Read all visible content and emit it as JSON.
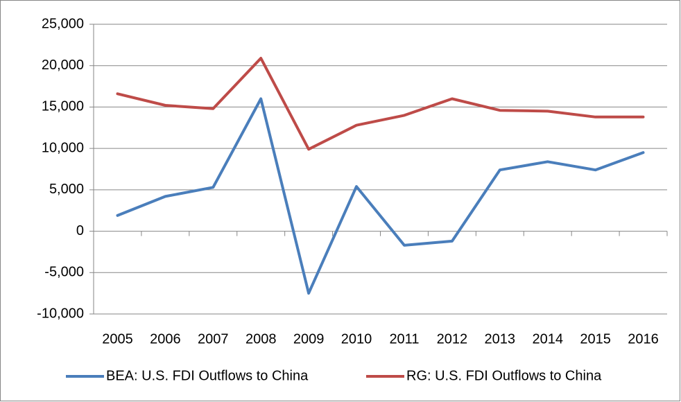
{
  "chart_data": {
    "type": "line",
    "categories": [
      "2005",
      "2006",
      "2007",
      "2008",
      "2009",
      "2010",
      "2011",
      "2012",
      "2013",
      "2014",
      "2015",
      "2016"
    ],
    "series": [
      {
        "name": "BEA: U.S. FDI Outflows to China",
        "color": "#4a7ebb",
        "values": [
          1900,
          4200,
          5300,
          16000,
          -7500,
          5400,
          -1700,
          -1200,
          7400,
          8400,
          7400,
          9500
        ]
      },
      {
        "name": "RG: U.S. FDI Outflows to China",
        "color": "#be4b48",
        "values": [
          16600,
          15200,
          14800,
          20900,
          9900,
          12800,
          14000,
          16000,
          14600,
          14500,
          13800,
          13800
        ]
      }
    ],
    "ylim": [
      -10000,
      25000
    ],
    "yticks": [
      {
        "value": -10000,
        "label": "-10,000"
      },
      {
        "value": -5000,
        "label": "-5,000"
      },
      0,
      {
        "value": 5000,
        "label": "5,000"
      },
      {
        "value": 10000,
        "label": "10,000"
      },
      {
        "value": 15000,
        "label": "15,000"
      },
      {
        "value": 20000,
        "label": "20,000"
      },
      {
        "value": 25000,
        "label": "25,000"
      }
    ],
    "grid": true,
    "legend": "bottom"
  }
}
